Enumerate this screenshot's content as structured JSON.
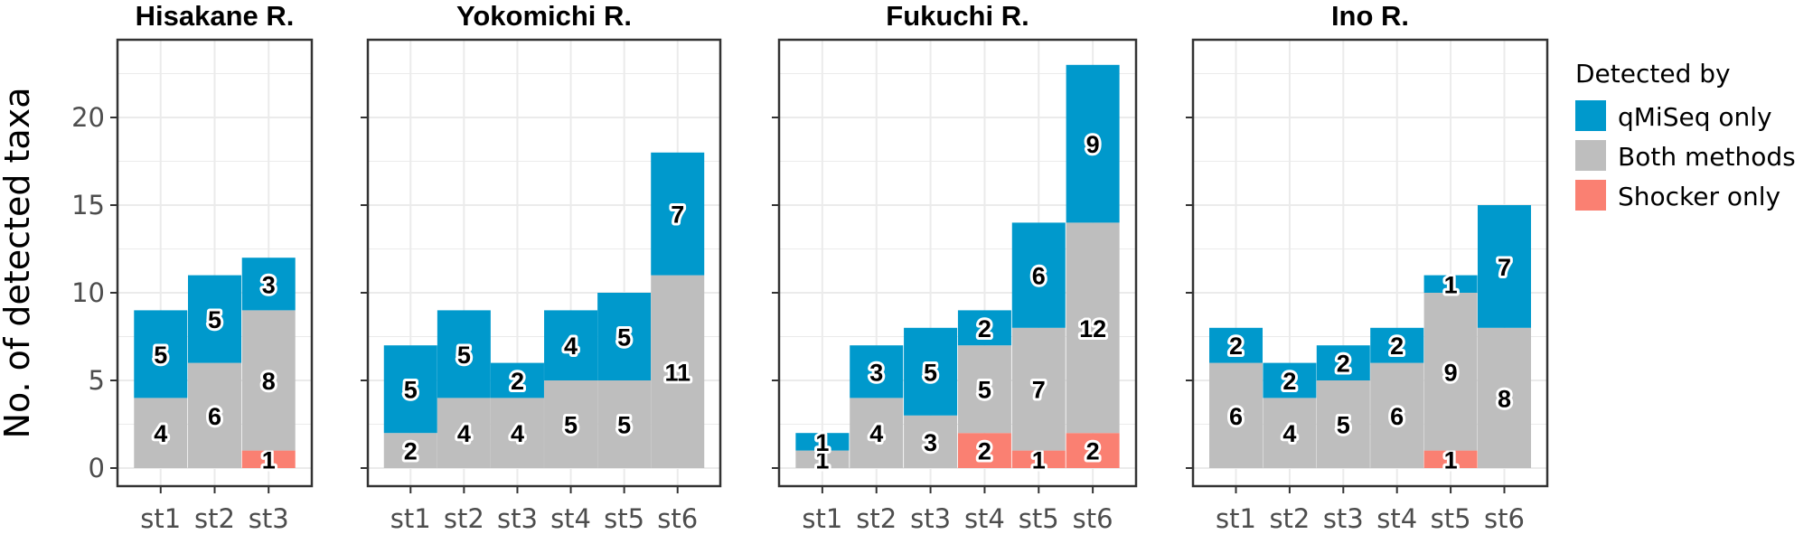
{
  "chart_data": {
    "type": "bar",
    "stacked": true,
    "ylabel": "No. of detected taxa",
    "ylim": [
      0,
      23
    ],
    "y_ticks": [
      0,
      5,
      10,
      15,
      20
    ],
    "grid": true,
    "legend": {
      "title": "Detected by",
      "position": "right",
      "entries": [
        {
          "name": "qMiSeq only",
          "color": "#0099cc"
        },
        {
          "name": "Both methods",
          "color": "#bebebe"
        },
        {
          "name": "Shocker only",
          "color": "#fa8072"
        }
      ]
    },
    "panels": [
      {
        "title": "Hisakane R.",
        "categories": [
          "st1",
          "st2",
          "st3"
        ],
        "series": [
          {
            "name": "Shocker only",
            "values": [
              0,
              0,
              1
            ]
          },
          {
            "name": "Both methods",
            "values": [
              4,
              6,
              8
            ]
          },
          {
            "name": "qMiSeq only",
            "values": [
              5,
              5,
              3
            ]
          }
        ]
      },
      {
        "title": "Yokomichi R.",
        "categories": [
          "st1",
          "st2",
          "st3",
          "st4",
          "st5",
          "st6"
        ],
        "series": [
          {
            "name": "Shocker only",
            "values": [
              0,
              0,
              0,
              0,
              0,
              0
            ]
          },
          {
            "name": "Both methods",
            "values": [
              2,
              4,
              4,
              5,
              5,
              11
            ]
          },
          {
            "name": "qMiSeq only",
            "values": [
              5,
              5,
              2,
              4,
              5,
              7
            ]
          }
        ]
      },
      {
        "title": "Fukuchi R.",
        "categories": [
          "st1",
          "st2",
          "st3",
          "st4",
          "st5",
          "st6"
        ],
        "series": [
          {
            "name": "Shocker only",
            "values": [
              0,
              0,
              0,
              2,
              1,
              2
            ]
          },
          {
            "name": "Both methods",
            "values": [
              1,
              4,
              3,
              5,
              7,
              12
            ]
          },
          {
            "name": "qMiSeq only",
            "values": [
              1,
              3,
              5,
              2,
              6,
              9
            ]
          }
        ]
      },
      {
        "title": "Ino R.",
        "categories": [
          "st1",
          "st2",
          "st3",
          "st4",
          "st5",
          "st6"
        ],
        "series": [
          {
            "name": "Shocker only",
            "values": [
              0,
              0,
              0,
              0,
              1,
              0
            ]
          },
          {
            "name": "Both methods",
            "values": [
              6,
              4,
              5,
              6,
              9,
              8
            ]
          },
          {
            "name": "qMiSeq only",
            "values": [
              2,
              2,
              2,
              2,
              1,
              7
            ]
          }
        ]
      }
    ]
  }
}
